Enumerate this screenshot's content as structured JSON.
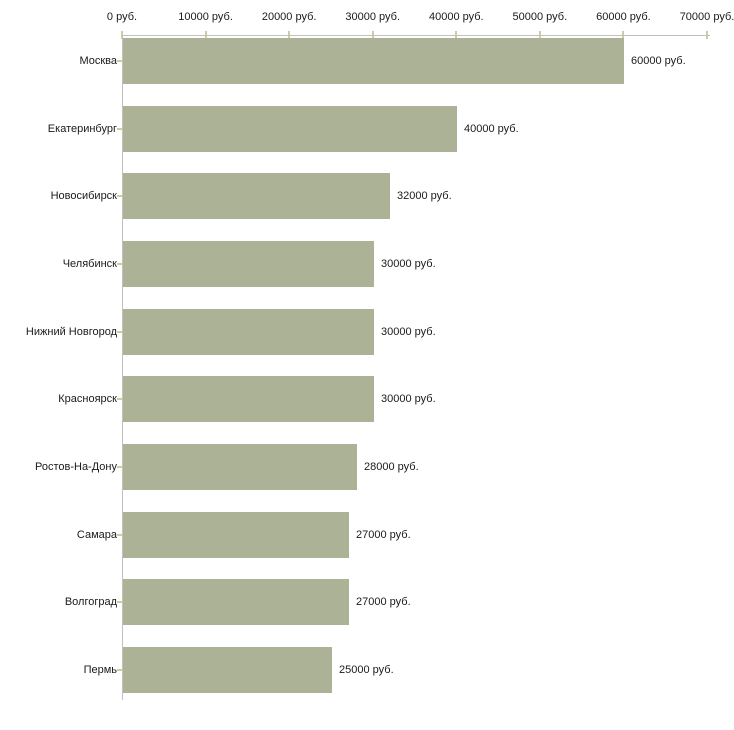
{
  "chart_data": {
    "type": "bar",
    "orientation": "horizontal",
    "title": "",
    "xlabel": "",
    "ylabel": "",
    "categories": [
      "Москва",
      "Екатеринбург",
      "Новосибирск",
      "Челябинск",
      "Нижний Новгород",
      "Красноярск",
      "Ростов-На-Дону",
      "Самара",
      "Волгоград",
      "Пермь"
    ],
    "values": [
      60000,
      40000,
      32000,
      30000,
      30000,
      30000,
      28000,
      27000,
      27000,
      25000
    ],
    "value_labels": [
      "60000 руб.",
      "40000 руб.",
      "32000 руб.",
      "30000 руб.",
      "30000 руб.",
      "30000 руб.",
      "28000 руб.",
      "27000 руб.",
      "27000 руб.",
      "25000 руб."
    ],
    "xlim": [
      0,
      70000
    ],
    "x_ticks": [
      0,
      10000,
      20000,
      30000,
      40000,
      50000,
      60000,
      70000
    ],
    "x_tick_labels": [
      "0 руб.",
      "10000 руб.",
      "20000 руб.",
      "30000 руб.",
      "40000 руб.",
      "50000 руб.",
      "60000 руб.",
      "70000 руб."
    ],
    "axis_position": "top",
    "grid": false,
    "legend": false,
    "colors": {
      "bar": "#abb296",
      "tick_mark": "#d3cba0",
      "axis_line": "#c0c0c0",
      "text": "#1a1a1a",
      "background": "#ffffff"
    }
  }
}
